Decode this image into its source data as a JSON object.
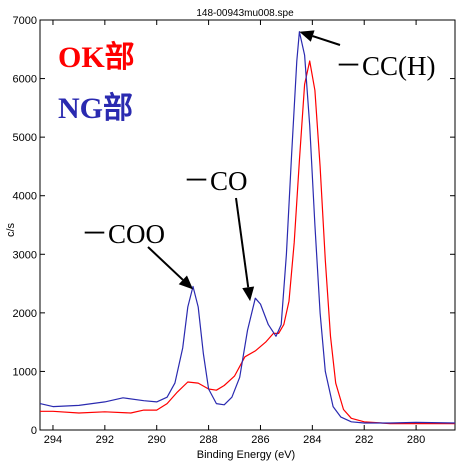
{
  "chart_data": {
    "type": "line",
    "title": "148-00943mu008.spe",
    "xlabel": "Binding Energy (eV)",
    "ylabel": "c/s",
    "xlim": [
      294.5,
      278.5
    ],
    "ylim": [
      0,
      7000
    ],
    "x_reversed": true,
    "grid": false,
    "x_ticks": [
      "294",
      "292",
      "290",
      "288",
      "286",
      "284",
      "282",
      "280"
    ],
    "y_ticks": [
      "0",
      "1000",
      "2000",
      "3000",
      "4000",
      "5000",
      "6000",
      "7000"
    ],
    "legend": [
      {
        "label": "OK部",
        "color": "#ff0000"
      },
      {
        "label": "NG部",
        "color": "#2a2ab0"
      }
    ],
    "series": [
      {
        "name": "OK部",
        "color": "#ff0000",
        "points": [
          [
            294.5,
            320
          ],
          [
            294,
            320
          ],
          [
            293,
            290
          ],
          [
            292,
            310
          ],
          [
            291,
            290
          ],
          [
            290.5,
            340
          ],
          [
            290,
            340
          ],
          [
            289.6,
            450
          ],
          [
            289.2,
            650
          ],
          [
            288.8,
            820
          ],
          [
            288.4,
            800
          ],
          [
            288,
            700
          ],
          [
            287.7,
            680
          ],
          [
            287.4,
            760
          ],
          [
            287,
            920
          ],
          [
            286.6,
            1250
          ],
          [
            286.2,
            1350
          ],
          [
            285.8,
            1500
          ],
          [
            285.5,
            1650
          ],
          [
            285.3,
            1650
          ],
          [
            285.1,
            1800
          ],
          [
            284.9,
            2200
          ],
          [
            284.7,
            3200
          ],
          [
            284.5,
            4600
          ],
          [
            284.3,
            5900
          ],
          [
            284.1,
            6300
          ],
          [
            283.9,
            5800
          ],
          [
            283.7,
            4500
          ],
          [
            283.5,
            2900
          ],
          [
            283.3,
            1600
          ],
          [
            283.1,
            800
          ],
          [
            282.8,
            350
          ],
          [
            282.5,
            200
          ],
          [
            282,
            140
          ],
          [
            281,
            110
          ],
          [
            280,
            110
          ],
          [
            278.5,
            110
          ]
        ]
      },
      {
        "name": "NG部",
        "color": "#2a2ab0",
        "points": [
          [
            294.5,
            450
          ],
          [
            294,
            400
          ],
          [
            293,
            420
          ],
          [
            292,
            480
          ],
          [
            291.3,
            550
          ],
          [
            290.5,
            500
          ],
          [
            290,
            480
          ],
          [
            289.6,
            560
          ],
          [
            289.3,
            800
          ],
          [
            289,
            1400
          ],
          [
            288.8,
            2100
          ],
          [
            288.6,
            2450
          ],
          [
            288.4,
            2100
          ],
          [
            288.2,
            1300
          ],
          [
            288,
            700
          ],
          [
            287.7,
            450
          ],
          [
            287.4,
            430
          ],
          [
            287.1,
            560
          ],
          [
            286.8,
            900
          ],
          [
            286.5,
            1700
          ],
          [
            286.2,
            2250
          ],
          [
            286,
            2150
          ],
          [
            285.7,
            1800
          ],
          [
            285.4,
            1600
          ],
          [
            285.2,
            1800
          ],
          [
            285,
            3000
          ],
          [
            284.8,
            4700
          ],
          [
            284.6,
            6300
          ],
          [
            284.5,
            6800
          ],
          [
            284.3,
            6400
          ],
          [
            284.1,
            5200
          ],
          [
            283.9,
            3500
          ],
          [
            283.7,
            2000
          ],
          [
            283.5,
            1000
          ],
          [
            283.2,
            400
          ],
          [
            282.9,
            220
          ],
          [
            282.5,
            140
          ],
          [
            282,
            120
          ],
          [
            281,
            120
          ],
          [
            280,
            130
          ],
          [
            278.5,
            120
          ]
        ]
      }
    ],
    "annotations": [
      {
        "text": "－CC(H)",
        "arrow_to": [
          284.5,
          6800
        ]
      },
      {
        "text": "－CO",
        "arrow_to": [
          286.4,
          2200
        ]
      },
      {
        "text": "－COO",
        "arrow_to": [
          288.6,
          2400
        ]
      }
    ]
  }
}
